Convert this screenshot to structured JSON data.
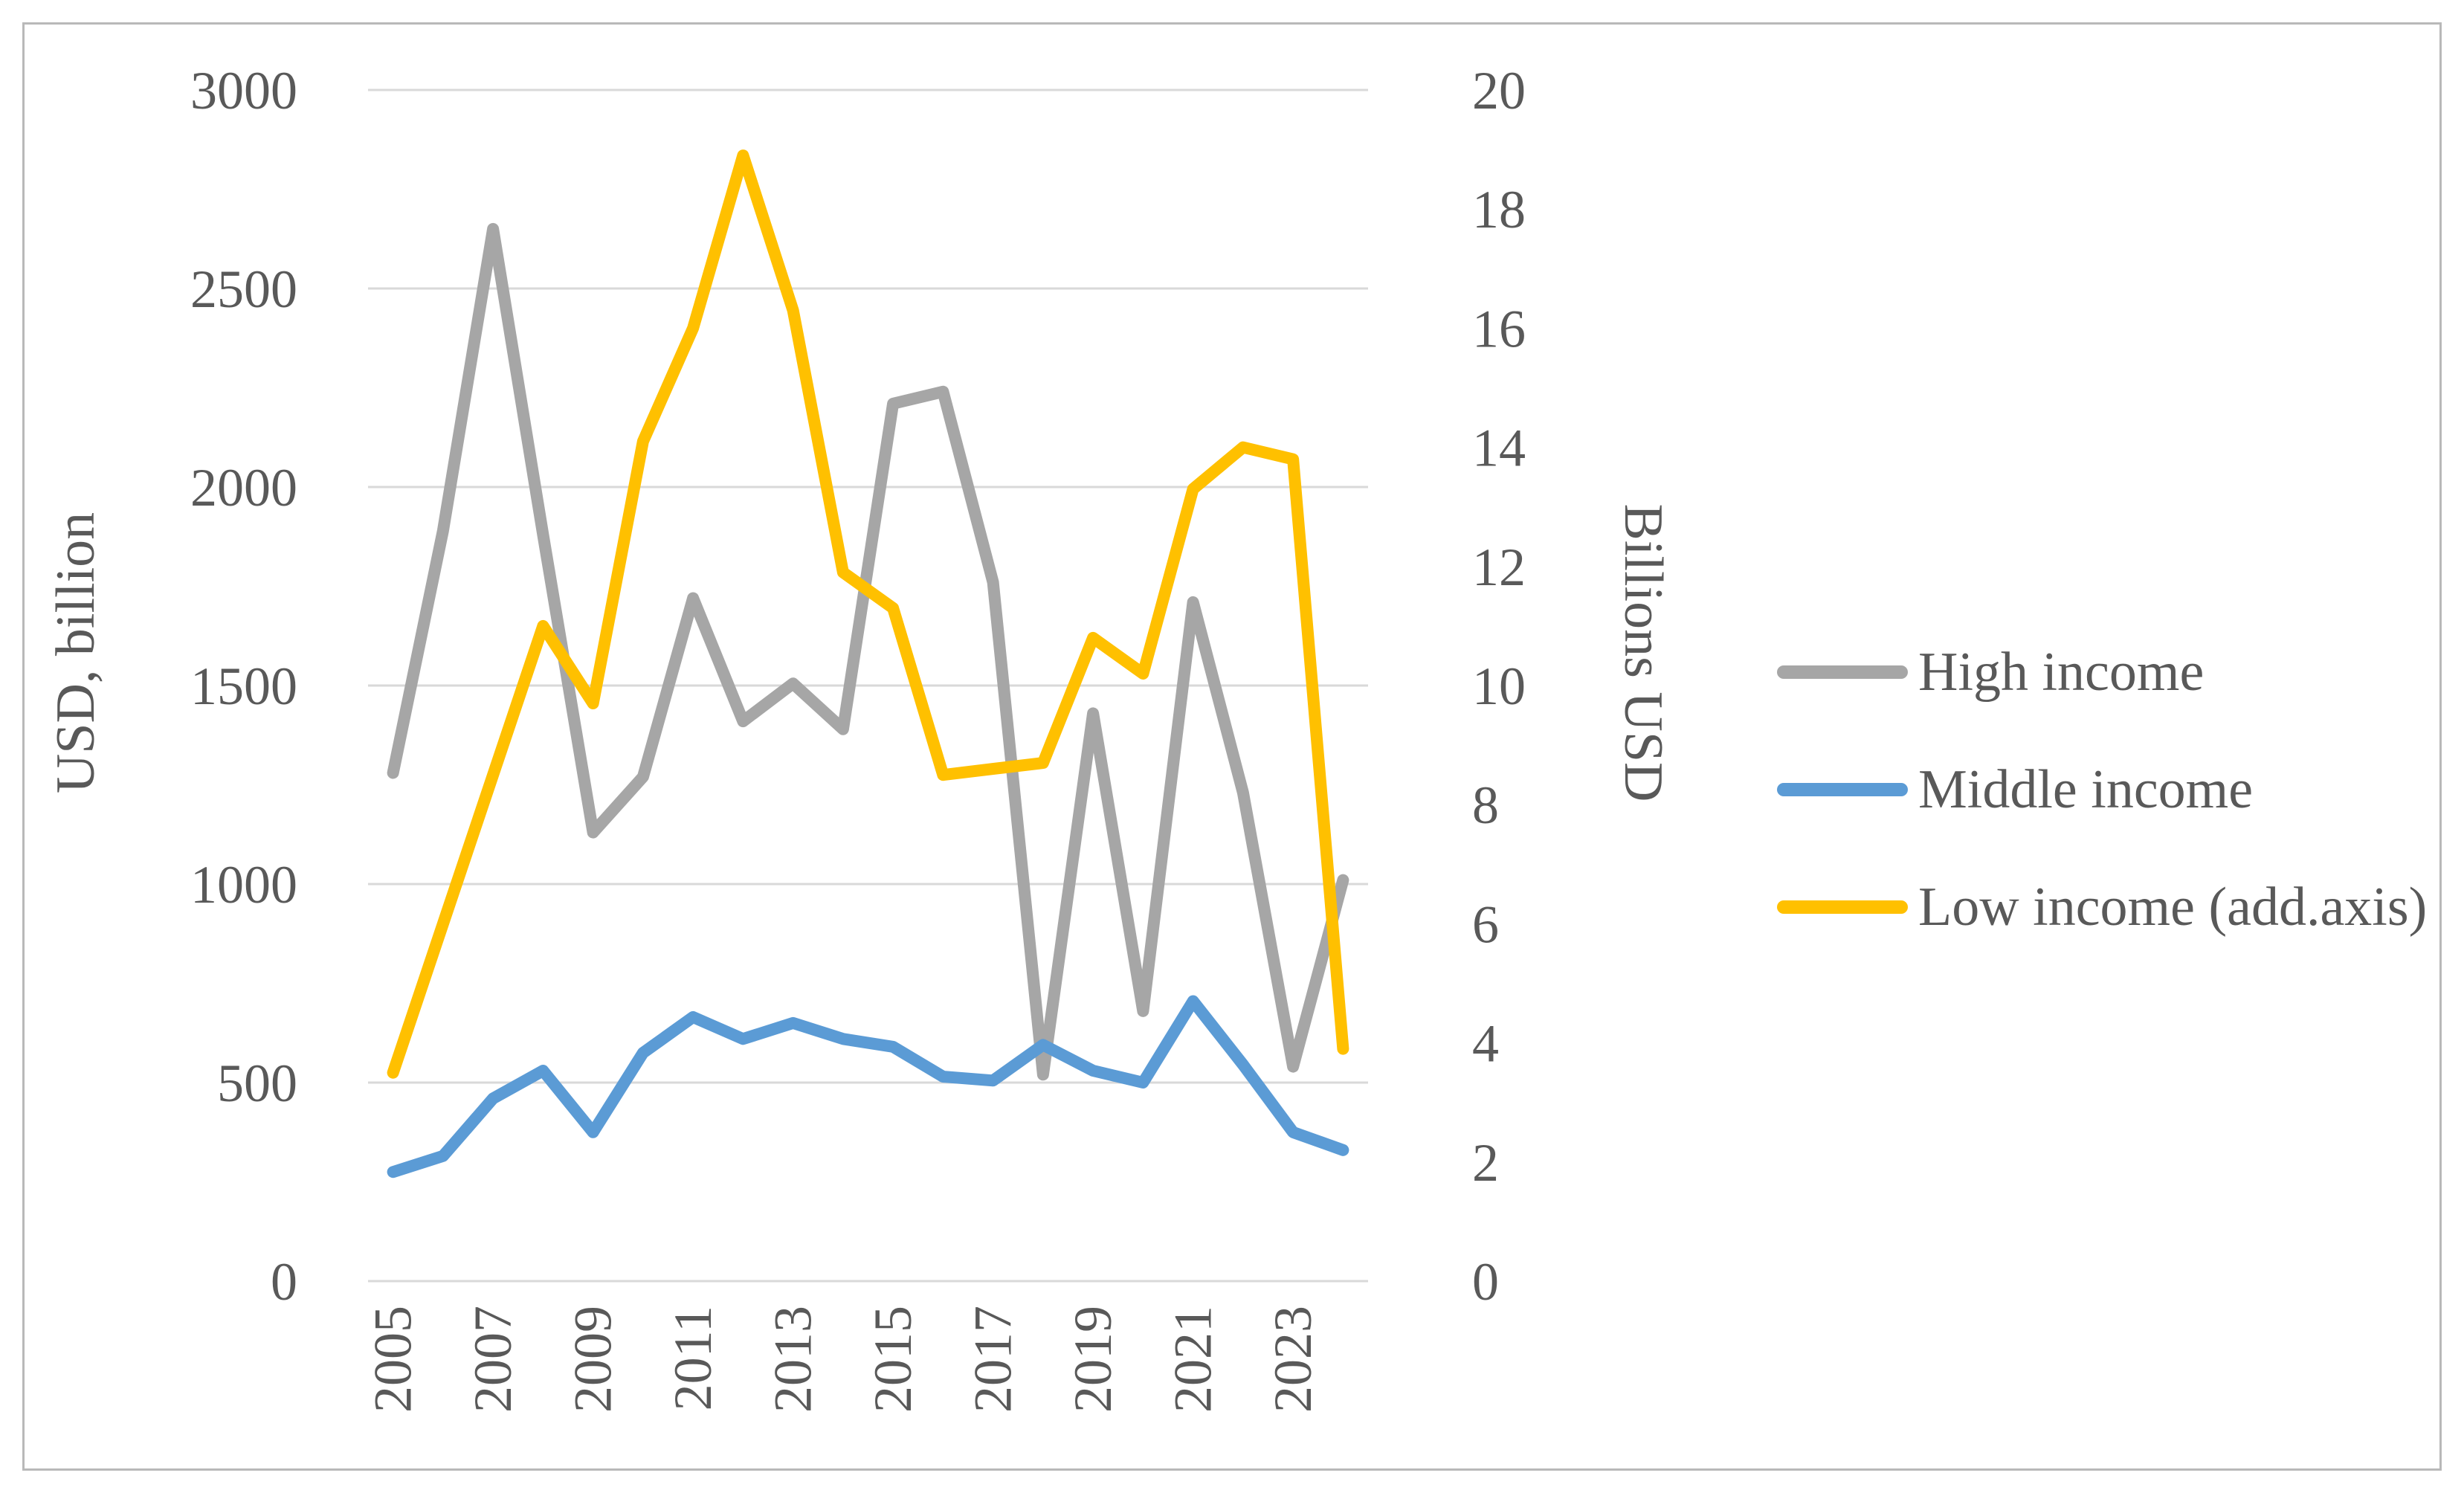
{
  "chart_data": {
    "type": "line",
    "categories": [
      "2005",
      "2006",
      "2007",
      "2008",
      "2009",
      "2010",
      "2011",
      "2012",
      "2013",
      "2014",
      "2015",
      "2016",
      "2017",
      "2018",
      "2019",
      "2020",
      "2021",
      "2022",
      "2023",
      "2024"
    ],
    "x_tick_labels": [
      "2005",
      "2007",
      "2009",
      "2011",
      "2013",
      "2015",
      "2017",
      "2019",
      "2021",
      "2023"
    ],
    "series": [
      {
        "name": "High income",
        "axis": "left",
        "color": "#a6a6a6",
        "values": [
          1280,
          1890,
          2650,
          1880,
          1130,
          1270,
          1720,
          1410,
          1505,
          1390,
          2210,
          2240,
          1760,
          520,
          1430,
          680,
          1710,
          1230,
          540,
          1010
        ]
      },
      {
        "name": "Middle income",
        "axis": "left",
        "color": "#5b9bd5",
        "values": [
          275,
          315,
          460,
          530,
          375,
          575,
          665,
          610,
          650,
          610,
          590,
          515,
          505,
          595,
          530,
          500,
          705,
          545,
          375,
          330
        ]
      },
      {
        "name": "Low income (add.axis)",
        "axis": "right",
        "color": "#ffc000",
        "values": [
          3.5,
          6.0,
          8.5,
          11.0,
          9.7,
          14.1,
          16.0,
          18.9,
          16.3,
          11.9,
          11.3,
          8.5,
          8.6,
          8.7,
          10.8,
          10.2,
          13.3,
          14.0,
          13.8,
          3.9
        ]
      }
    ],
    "title": "",
    "xlabel": "",
    "ylabel_left": "USD, billion",
    "ylabel_right": "Billions USD",
    "ylim_left": [
      0,
      3000
    ],
    "ylim_right": [
      0,
      20
    ],
    "yticks_left": [
      "3000",
      "2500",
      "2000",
      "1500",
      "1000",
      "500",
      "0"
    ],
    "yticks_right": [
      "20",
      "18",
      "16",
      "14",
      "12",
      "10",
      "8",
      "6",
      "4",
      "2",
      "0"
    ],
    "grid": true,
    "legend_position": "right"
  },
  "colors": {
    "gridline": "#d9d9d9",
    "tick_text": "#595959",
    "frame_border": "#b9b9b9",
    "background": "#ffffff"
  }
}
